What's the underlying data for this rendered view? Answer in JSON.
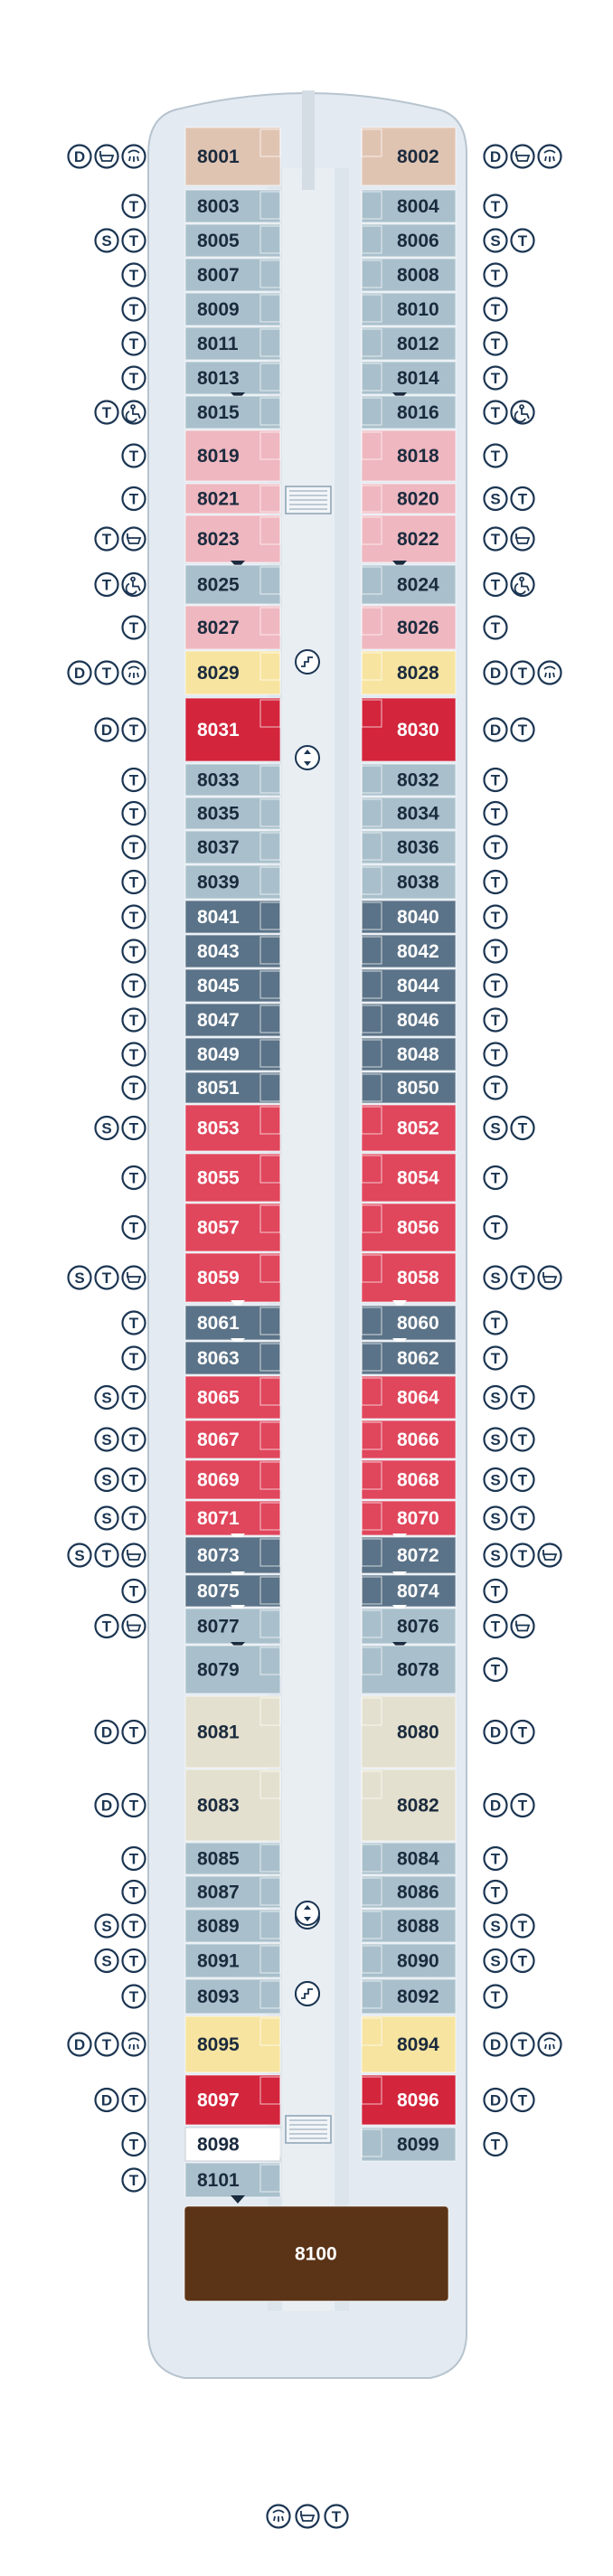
{
  "colors": {
    "hull": "#e3eaf1",
    "corridor": "#dde5ec",
    "pale_blue": "#a9c0cc",
    "slate": "#5b7388",
    "pink": "#efb7c0",
    "yellow": "#f7e4a0",
    "red": "#d3253c",
    "coral": "#e0465c",
    "beige": "#e4e0cf",
    "tan": "#e0c4b2",
    "brown": "#5b3316",
    "icon_stroke": "#1b3552"
  },
  "legend_glyphs": {
    "D": "D",
    "T": "T",
    "S": "S"
  },
  "cabins": [
    {
      "num": "8001",
      "side": "L",
      "row": 0,
      "cat": "tan",
      "icons": [
        "D",
        "bath",
        "shower"
      ]
    },
    {
      "num": "8002",
      "side": "R",
      "row": 0,
      "cat": "tan",
      "icons": [
        "D",
        "bath",
        "shower"
      ]
    },
    {
      "num": "8003",
      "side": "L",
      "row": 1,
      "cat": "pale_blue",
      "icons": [
        "T"
      ]
    },
    {
      "num": "8004",
      "side": "R",
      "row": 1,
      "cat": "pale_blue",
      "icons": [
        "T"
      ]
    },
    {
      "num": "8005",
      "side": "L",
      "row": 2,
      "cat": "pale_blue",
      "icons": [
        "S",
        "T"
      ]
    },
    {
      "num": "8006",
      "side": "R",
      "row": 2,
      "cat": "pale_blue",
      "icons": [
        "S",
        "T"
      ]
    },
    {
      "num": "8007",
      "side": "L",
      "row": 3,
      "cat": "pale_blue",
      "icons": [
        "T"
      ]
    },
    {
      "num": "8008",
      "side": "R",
      "row": 3,
      "cat": "pale_blue",
      "icons": [
        "T"
      ]
    },
    {
      "num": "8009",
      "side": "L",
      "row": 4,
      "cat": "pale_blue",
      "icons": [
        "T"
      ]
    },
    {
      "num": "8010",
      "side": "R",
      "row": 4,
      "cat": "pale_blue",
      "icons": [
        "T"
      ]
    },
    {
      "num": "8011",
      "side": "L",
      "row": 5,
      "cat": "pale_blue",
      "icons": [
        "T"
      ]
    },
    {
      "num": "8012",
      "side": "R",
      "row": 5,
      "cat": "pale_blue",
      "icons": [
        "T"
      ]
    },
    {
      "num": "8013",
      "side": "L",
      "row": 6,
      "cat": "pale_blue",
      "icons": [
        "T"
      ],
      "connect": true
    },
    {
      "num": "8014",
      "side": "R",
      "row": 6,
      "cat": "pale_blue",
      "icons": [
        "T"
      ],
      "connect": true
    },
    {
      "num": "8015",
      "side": "L",
      "row": 7,
      "cat": "pale_blue",
      "icons": [
        "T",
        "wheelchair"
      ]
    },
    {
      "num": "8016",
      "side": "R",
      "row": 7,
      "cat": "pale_blue",
      "icons": [
        "T",
        "wheelchair"
      ]
    },
    {
      "num": "8019",
      "side": "L",
      "row": 8,
      "cat": "pink",
      "icons": [
        "T"
      ]
    },
    {
      "num": "8018",
      "side": "R",
      "row": 8,
      "cat": "pink",
      "icons": [
        "T"
      ]
    },
    {
      "num": "8021",
      "side": "L",
      "row": 9,
      "cat": "pink",
      "icons": [
        "T"
      ]
    },
    {
      "num": "8020",
      "side": "R",
      "row": 9,
      "cat": "pink",
      "icons": [
        "S",
        "T"
      ]
    },
    {
      "num": "8023",
      "side": "L",
      "row": 10,
      "cat": "pink",
      "icons": [
        "T",
        "bath"
      ],
      "connect": true
    },
    {
      "num": "8022",
      "side": "R",
      "row": 10,
      "cat": "pink",
      "icons": [
        "T",
        "bath"
      ],
      "connect": true
    },
    {
      "num": "8025",
      "side": "L",
      "row": 11,
      "cat": "pale_blue",
      "icons": [
        "T",
        "wheelchair"
      ]
    },
    {
      "num": "8024",
      "side": "R",
      "row": 11,
      "cat": "pale_blue",
      "icons": [
        "T",
        "wheelchair"
      ]
    },
    {
      "num": "8027",
      "side": "L",
      "row": 12,
      "cat": "pink",
      "icons": [
        "T"
      ]
    },
    {
      "num": "8026",
      "side": "R",
      "row": 12,
      "cat": "pink",
      "icons": [
        "T"
      ]
    },
    {
      "num": "8029",
      "side": "L",
      "row": 13,
      "cat": "yellow",
      "icons": [
        "D",
        "T",
        "shower"
      ]
    },
    {
      "num": "8028",
      "side": "R",
      "row": 13,
      "cat": "yellow",
      "icons": [
        "D",
        "T",
        "shower"
      ]
    },
    {
      "num": "8031",
      "side": "L",
      "row": 14,
      "cat": "red",
      "icons": [
        "D",
        "T"
      ]
    },
    {
      "num": "8030",
      "side": "R",
      "row": 14,
      "cat": "red",
      "icons": [
        "D",
        "T"
      ]
    },
    {
      "num": "8033",
      "side": "L",
      "row": 15,
      "cat": "pale_blue",
      "icons": [
        "T"
      ]
    },
    {
      "num": "8032",
      "side": "R",
      "row": 15,
      "cat": "pale_blue",
      "icons": [
        "T"
      ]
    },
    {
      "num": "8035",
      "side": "L",
      "row": 16,
      "cat": "pale_blue",
      "icons": [
        "T"
      ]
    },
    {
      "num": "8034",
      "side": "R",
      "row": 16,
      "cat": "pale_blue",
      "icons": [
        "T"
      ]
    },
    {
      "num": "8037",
      "side": "L",
      "row": 17,
      "cat": "pale_blue",
      "icons": [
        "T"
      ]
    },
    {
      "num": "8036",
      "side": "R",
      "row": 17,
      "cat": "pale_blue",
      "icons": [
        "T"
      ]
    },
    {
      "num": "8039",
      "side": "L",
      "row": 18,
      "cat": "pale_blue",
      "icons": [
        "T"
      ]
    },
    {
      "num": "8038",
      "side": "R",
      "row": 18,
      "cat": "pale_blue",
      "icons": [
        "T"
      ]
    },
    {
      "num": "8041",
      "side": "L",
      "row": 19,
      "cat": "slate",
      "icons": [
        "T"
      ]
    },
    {
      "num": "8040",
      "side": "R",
      "row": 19,
      "cat": "slate",
      "icons": [
        "T"
      ]
    },
    {
      "num": "8043",
      "side": "L",
      "row": 20,
      "cat": "slate",
      "icons": [
        "T"
      ]
    },
    {
      "num": "8042",
      "side": "R",
      "row": 20,
      "cat": "slate",
      "icons": [
        "T"
      ]
    },
    {
      "num": "8045",
      "side": "L",
      "row": 21,
      "cat": "slate",
      "icons": [
        "T"
      ]
    },
    {
      "num": "8044",
      "side": "R",
      "row": 21,
      "cat": "slate",
      "icons": [
        "T"
      ]
    },
    {
      "num": "8047",
      "side": "L",
      "row": 22,
      "cat": "slate",
      "icons": [
        "T"
      ]
    },
    {
      "num": "8046",
      "side": "R",
      "row": 22,
      "cat": "slate",
      "icons": [
        "T"
      ]
    },
    {
      "num": "8049",
      "side": "L",
      "row": 23,
      "cat": "slate",
      "icons": [
        "T"
      ]
    },
    {
      "num": "8048",
      "side": "R",
      "row": 23,
      "cat": "slate",
      "icons": [
        "T"
      ]
    },
    {
      "num": "8051",
      "side": "L",
      "row": 24,
      "cat": "slate",
      "icons": [
        "T"
      ]
    },
    {
      "num": "8050",
      "side": "R",
      "row": 24,
      "cat": "slate",
      "icons": [
        "T"
      ]
    },
    {
      "num": "8053",
      "side": "L",
      "row": 25,
      "cat": "coral",
      "icons": [
        "S",
        "T"
      ]
    },
    {
      "num": "8052",
      "side": "R",
      "row": 25,
      "cat": "coral",
      "icons": [
        "S",
        "T"
      ]
    },
    {
      "num": "8055",
      "side": "L",
      "row": 26,
      "cat": "coral",
      "icons": [
        "T"
      ]
    },
    {
      "num": "8054",
      "side": "R",
      "row": 26,
      "cat": "coral",
      "icons": [
        "T"
      ]
    },
    {
      "num": "8057",
      "side": "L",
      "row": 27,
      "cat": "coral",
      "icons": [
        "T"
      ]
    },
    {
      "num": "8056",
      "side": "R",
      "row": 27,
      "cat": "coral",
      "icons": [
        "T"
      ]
    },
    {
      "num": "8059",
      "side": "L",
      "row": 28,
      "cat": "coral",
      "icons": [
        "S",
        "T",
        "bath"
      ],
      "connect": true
    },
    {
      "num": "8058",
      "side": "R",
      "row": 28,
      "cat": "coral",
      "icons": [
        "S",
        "T",
        "bath"
      ],
      "connect": true
    },
    {
      "num": "8061",
      "side": "L",
      "row": 29,
      "cat": "slate",
      "icons": [
        "T"
      ],
      "connect": true
    },
    {
      "num": "8060",
      "side": "R",
      "row": 29,
      "cat": "slate",
      "icons": [
        "T"
      ],
      "connect": true
    },
    {
      "num": "8063",
      "side": "L",
      "row": 30,
      "cat": "slate",
      "icons": [
        "T"
      ]
    },
    {
      "num": "8062",
      "side": "R",
      "row": 30,
      "cat": "slate",
      "icons": [
        "T"
      ]
    },
    {
      "num": "8065",
      "side": "L",
      "row": 31,
      "cat": "coral",
      "icons": [
        "S",
        "T"
      ]
    },
    {
      "num": "8064",
      "side": "R",
      "row": 31,
      "cat": "coral",
      "icons": [
        "S",
        "T"
      ]
    },
    {
      "num": "8067",
      "side": "L",
      "row": 32,
      "cat": "coral",
      "icons": [
        "S",
        "T"
      ]
    },
    {
      "num": "8066",
      "side": "R",
      "row": 32,
      "cat": "coral",
      "icons": [
        "S",
        "T"
      ]
    },
    {
      "num": "8069",
      "side": "L",
      "row": 33,
      "cat": "coral",
      "icons": [
        "S",
        "T"
      ]
    },
    {
      "num": "8068",
      "side": "R",
      "row": 33,
      "cat": "coral",
      "icons": [
        "S",
        "T"
      ]
    },
    {
      "num": "8071",
      "side": "L",
      "row": 34,
      "cat": "coral",
      "icons": [
        "S",
        "T"
      ],
      "connect": true
    },
    {
      "num": "8070",
      "side": "R",
      "row": 34,
      "cat": "coral",
      "icons": [
        "S",
        "T"
      ],
      "connect": true
    },
    {
      "num": "8073",
      "side": "L",
      "row": 35,
      "cat": "slate",
      "icons": [
        "S",
        "T",
        "bath"
      ],
      "connect": true
    },
    {
      "num": "8072",
      "side": "R",
      "row": 35,
      "cat": "slate",
      "icons": [
        "S",
        "T",
        "bath"
      ],
      "connect": true
    },
    {
      "num": "8075",
      "side": "L",
      "row": 36,
      "cat": "slate",
      "icons": [
        "T"
      ],
      "connect": true
    },
    {
      "num": "8074",
      "side": "R",
      "row": 36,
      "cat": "slate",
      "icons": [
        "T"
      ],
      "connect": true
    },
    {
      "num": "8077",
      "side": "L",
      "row": 37,
      "cat": "pale_blue",
      "icons": [
        "T",
        "bath"
      ],
      "connect": true
    },
    {
      "num": "8076",
      "side": "R",
      "row": 37,
      "cat": "pale_blue",
      "icons": [
        "T",
        "bath"
      ],
      "connect": true
    },
    {
      "num": "8079",
      "side": "L",
      "row": 38,
      "cat": "pale_blue",
      "icons": []
    },
    {
      "num": "8078",
      "side": "R",
      "row": 38,
      "cat": "pale_blue",
      "icons": [
        "T"
      ]
    },
    {
      "num": "8081",
      "side": "L",
      "row": 39,
      "cat": "beige",
      "icons": [
        "D",
        "T"
      ]
    },
    {
      "num": "8080",
      "side": "R",
      "row": 39,
      "cat": "beige",
      "icons": [
        "D",
        "T"
      ]
    },
    {
      "num": "8083",
      "side": "L",
      "row": 40,
      "cat": "beige",
      "icons": [
        "D",
        "T"
      ]
    },
    {
      "num": "8082",
      "side": "R",
      "row": 40,
      "cat": "beige",
      "icons": [
        "D",
        "T"
      ]
    },
    {
      "num": "8085",
      "side": "L",
      "row": 41,
      "cat": "pale_blue",
      "icons": [
        "T"
      ]
    },
    {
      "num": "8084",
      "side": "R",
      "row": 41,
      "cat": "pale_blue",
      "icons": [
        "T"
      ]
    },
    {
      "num": "8087",
      "side": "L",
      "row": 42,
      "cat": "pale_blue",
      "icons": [
        "T"
      ]
    },
    {
      "num": "8086",
      "side": "R",
      "row": 42,
      "cat": "pale_blue",
      "icons": [
        "T"
      ]
    },
    {
      "num": "8089",
      "side": "L",
      "row": 43,
      "cat": "pale_blue",
      "icons": [
        "S",
        "T"
      ]
    },
    {
      "num": "8088",
      "side": "R",
      "row": 43,
      "cat": "pale_blue",
      "icons": [
        "S",
        "T"
      ]
    },
    {
      "num": "8091",
      "side": "L",
      "row": 44,
      "cat": "pale_blue",
      "icons": [
        "S",
        "T"
      ]
    },
    {
      "num": "8090",
      "side": "R",
      "row": 44,
      "cat": "pale_blue",
      "icons": [
        "S",
        "T"
      ]
    },
    {
      "num": "8093",
      "side": "L",
      "row": 45,
      "cat": "pale_blue",
      "icons": [
        "T"
      ]
    },
    {
      "num": "8092",
      "side": "R",
      "row": 45,
      "cat": "pale_blue",
      "icons": [
        "T"
      ]
    },
    {
      "num": "8095",
      "side": "L",
      "row": 46,
      "cat": "yellow",
      "icons": [
        "D",
        "T",
        "shower"
      ]
    },
    {
      "num": "8094",
      "side": "R",
      "row": 46,
      "cat": "yellow",
      "icons": [
        "D",
        "T",
        "shower"
      ]
    },
    {
      "num": "8097",
      "side": "L",
      "row": 47,
      "cat": "red",
      "icons": [
        "D",
        "T"
      ]
    },
    {
      "num": "8096",
      "side": "R",
      "row": 47,
      "cat": "red",
      "icons": [
        "D",
        "T"
      ]
    },
    {
      "num": "8098",
      "side": "L",
      "row": 48,
      "cat": "white",
      "icons": [
        "T"
      ]
    },
    {
      "num": "8099",
      "side": "R",
      "row": 48,
      "cat": "pale_blue",
      "icons": [
        "T"
      ]
    },
    {
      "num": "8101",
      "side": "L",
      "row": 49,
      "cat": "pale_blue",
      "icons": [
        "T"
      ],
      "connect": true
    },
    {
      "num": "8100",
      "side": "C",
      "row": 50,
      "cat": "brown",
      "icons": [
        "shower",
        "bath",
        "T"
      ]
    }
  ]
}
